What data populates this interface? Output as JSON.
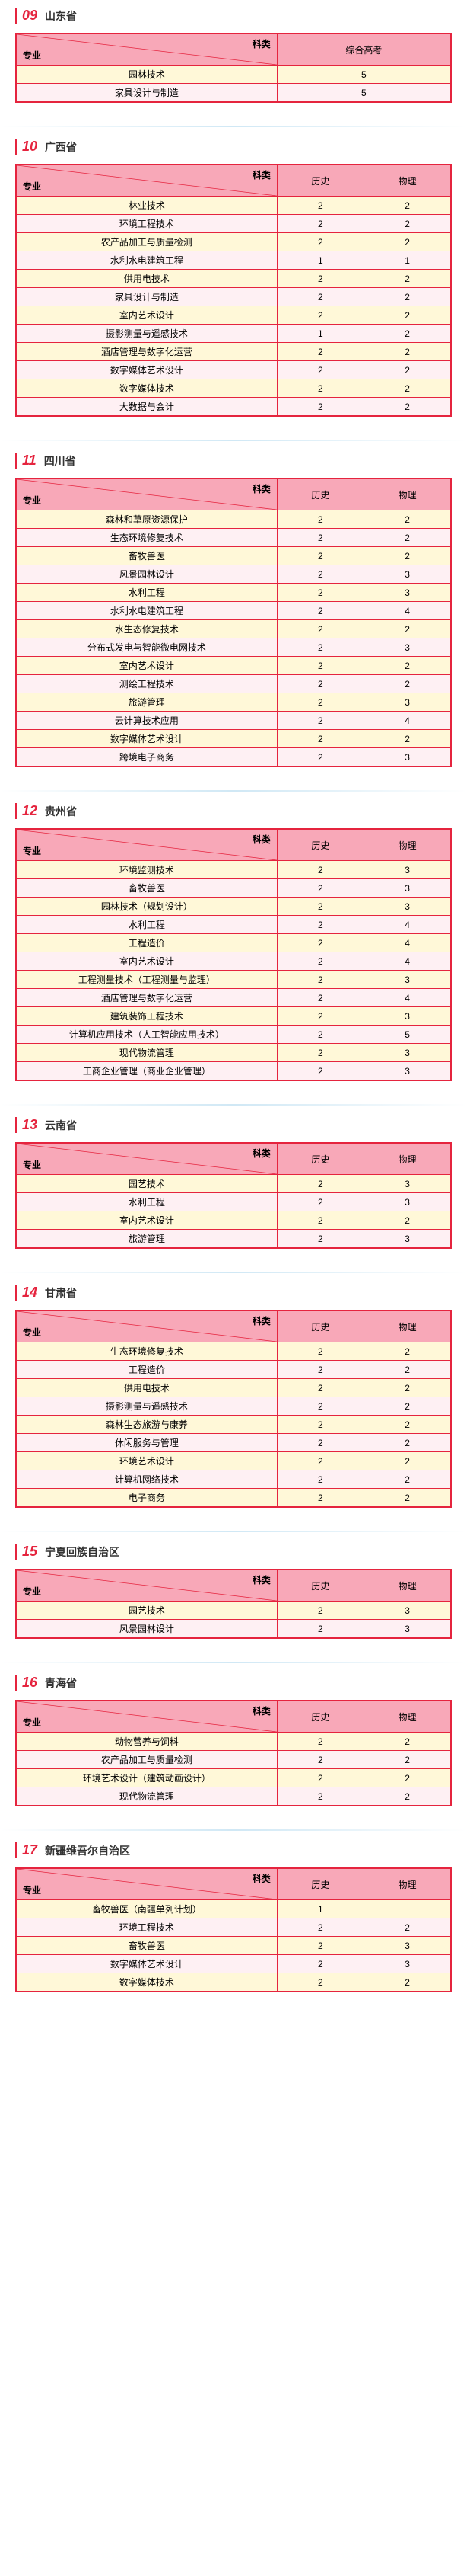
{
  "header_labels": {
    "subject": "科类",
    "major": "专业"
  },
  "sections": [
    {
      "num": "09",
      "title": "山东省",
      "columns": [
        "综合高考"
      ],
      "rows": [
        {
          "major": "园林技术",
          "vals": [
            "5"
          ]
        },
        {
          "major": "家具设计与制造",
          "vals": [
            "5"
          ]
        }
      ]
    },
    {
      "num": "10",
      "title": "广西省",
      "columns": [
        "历史",
        "物理"
      ],
      "rows": [
        {
          "major": "林业技术",
          "vals": [
            "2",
            "2"
          ]
        },
        {
          "major": "环境工程技术",
          "vals": [
            "2",
            "2"
          ]
        },
        {
          "major": "农产品加工与质量检测",
          "vals": [
            "2",
            "2"
          ]
        },
        {
          "major": "水利水电建筑工程",
          "vals": [
            "1",
            "1"
          ]
        },
        {
          "major": "供用电技术",
          "vals": [
            "2",
            "2"
          ]
        },
        {
          "major": "家具设计与制造",
          "vals": [
            "2",
            "2"
          ]
        },
        {
          "major": "室内艺术设计",
          "vals": [
            "2",
            "2"
          ]
        },
        {
          "major": "摄影测量与遥感技术",
          "vals": [
            "1",
            "2"
          ]
        },
        {
          "major": "酒店管理与数字化运营",
          "vals": [
            "2",
            "2"
          ]
        },
        {
          "major": "数字媒体艺术设计",
          "vals": [
            "2",
            "2"
          ]
        },
        {
          "major": "数字媒体技术",
          "vals": [
            "2",
            "2"
          ]
        },
        {
          "major": "大数据与会计",
          "vals": [
            "2",
            "2"
          ]
        }
      ]
    },
    {
      "num": "11",
      "title": "四川省",
      "columns": [
        "历史",
        "物理"
      ],
      "rows": [
        {
          "major": "森林和草原资源保护",
          "vals": [
            "2",
            "2"
          ]
        },
        {
          "major": "生态环境修复技术",
          "vals": [
            "2",
            "2"
          ]
        },
        {
          "major": "畜牧兽医",
          "vals": [
            "2",
            "2"
          ]
        },
        {
          "major": "风景园林设计",
          "vals": [
            "2",
            "3"
          ]
        },
        {
          "major": "水利工程",
          "vals": [
            "2",
            "3"
          ]
        },
        {
          "major": "水利水电建筑工程",
          "vals": [
            "2",
            "4"
          ]
        },
        {
          "major": "水生态修复技术",
          "vals": [
            "2",
            "2"
          ]
        },
        {
          "major": "分布式发电与智能微电网技术",
          "vals": [
            "2",
            "3"
          ]
        },
        {
          "major": "室内艺术设计",
          "vals": [
            "2",
            "2"
          ]
        },
        {
          "major": "测绘工程技术",
          "vals": [
            "2",
            "2"
          ]
        },
        {
          "major": "旅游管理",
          "vals": [
            "2",
            "3"
          ]
        },
        {
          "major": "云计算技术应用",
          "vals": [
            "2",
            "4"
          ]
        },
        {
          "major": "数字媒体艺术设计",
          "vals": [
            "2",
            "2"
          ]
        },
        {
          "major": "跨境电子商务",
          "vals": [
            "2",
            "3"
          ]
        }
      ]
    },
    {
      "num": "12",
      "title": "贵州省",
      "columns": [
        "历史",
        "物理"
      ],
      "rows": [
        {
          "major": "环境监测技术",
          "vals": [
            "2",
            "3"
          ]
        },
        {
          "major": "畜牧兽医",
          "vals": [
            "2",
            "3"
          ]
        },
        {
          "major": "园林技术（规划设计）",
          "vals": [
            "2",
            "3"
          ]
        },
        {
          "major": "水利工程",
          "vals": [
            "2",
            "4"
          ]
        },
        {
          "major": "工程造价",
          "vals": [
            "2",
            "4"
          ]
        },
        {
          "major": "室内艺术设计",
          "vals": [
            "2",
            "4"
          ]
        },
        {
          "major": "工程测量技术（工程测量与监理）",
          "vals": [
            "2",
            "3"
          ]
        },
        {
          "major": "酒店管理与数字化运营",
          "vals": [
            "2",
            "4"
          ]
        },
        {
          "major": "建筑装饰工程技术",
          "vals": [
            "2",
            "3"
          ]
        },
        {
          "major": "计算机应用技术（人工智能应用技术）",
          "vals": [
            "2",
            "5"
          ]
        },
        {
          "major": "现代物流管理",
          "vals": [
            "2",
            "3"
          ]
        },
        {
          "major": "工商企业管理（商业企业管理）",
          "vals": [
            "2",
            "3"
          ]
        }
      ]
    },
    {
      "num": "13",
      "title": "云南省",
      "columns": [
        "历史",
        "物理"
      ],
      "rows": [
        {
          "major": "园艺技术",
          "vals": [
            "2",
            "3"
          ]
        },
        {
          "major": "水利工程",
          "vals": [
            "2",
            "3"
          ]
        },
        {
          "major": "室内艺术设计",
          "vals": [
            "2",
            "2"
          ]
        },
        {
          "major": "旅游管理",
          "vals": [
            "2",
            "3"
          ]
        }
      ]
    },
    {
      "num": "14",
      "title": "甘肃省",
      "columns": [
        "历史",
        "物理"
      ],
      "rows": [
        {
          "major": "生态环境修复技术",
          "vals": [
            "2",
            "2"
          ]
        },
        {
          "major": "工程造价",
          "vals": [
            "2",
            "2"
          ]
        },
        {
          "major": "供用电技术",
          "vals": [
            "2",
            "2"
          ]
        },
        {
          "major": "摄影测量与遥感技术",
          "vals": [
            "2",
            "2"
          ]
        },
        {
          "major": "森林生态旅游与康养",
          "vals": [
            "2",
            "2"
          ]
        },
        {
          "major": "休闲服务与管理",
          "vals": [
            "2",
            "2"
          ]
        },
        {
          "major": "环境艺术设计",
          "vals": [
            "2",
            "2"
          ]
        },
        {
          "major": "计算机网络技术",
          "vals": [
            "2",
            "2"
          ]
        },
        {
          "major": "电子商务",
          "vals": [
            "2",
            "2"
          ]
        }
      ]
    },
    {
      "num": "15",
      "title": "宁夏回族自治区",
      "columns": [
        "历史",
        "物理"
      ],
      "rows": [
        {
          "major": "园艺技术",
          "vals": [
            "2",
            "3"
          ]
        },
        {
          "major": "风景园林设计",
          "vals": [
            "2",
            "3"
          ]
        }
      ]
    },
    {
      "num": "16",
      "title": "青海省",
      "columns": [
        "历史",
        "物理"
      ],
      "rows": [
        {
          "major": "动物营养与饲料",
          "vals": [
            "2",
            "2"
          ]
        },
        {
          "major": "农产品加工与质量检测",
          "vals": [
            "2",
            "2"
          ]
        },
        {
          "major": "环境艺术设计（建筑动画设计）",
          "vals": [
            "2",
            "2"
          ]
        },
        {
          "major": "现代物流管理",
          "vals": [
            "2",
            "2"
          ]
        }
      ]
    },
    {
      "num": "17",
      "title": "新疆维吾尔自治区",
      "columns": [
        "历史",
        "物理"
      ],
      "rows": [
        {
          "major": "畜牧兽医（南疆单列计划）",
          "vals": [
            "1",
            ""
          ]
        },
        {
          "major": "环境工程技术",
          "vals": [
            "2",
            "2"
          ]
        },
        {
          "major": "畜牧兽医",
          "vals": [
            "2",
            "3"
          ]
        },
        {
          "major": "数字媒体艺术设计",
          "vals": [
            "2",
            "3"
          ]
        },
        {
          "major": "数字媒体技术",
          "vals": [
            "2",
            "2"
          ]
        }
      ]
    }
  ],
  "colors": {
    "accent": "#e5243e",
    "header_bg": "#f8a8b8",
    "row_even": "#fff8d8",
    "row_odd": "#fef0f3"
  }
}
